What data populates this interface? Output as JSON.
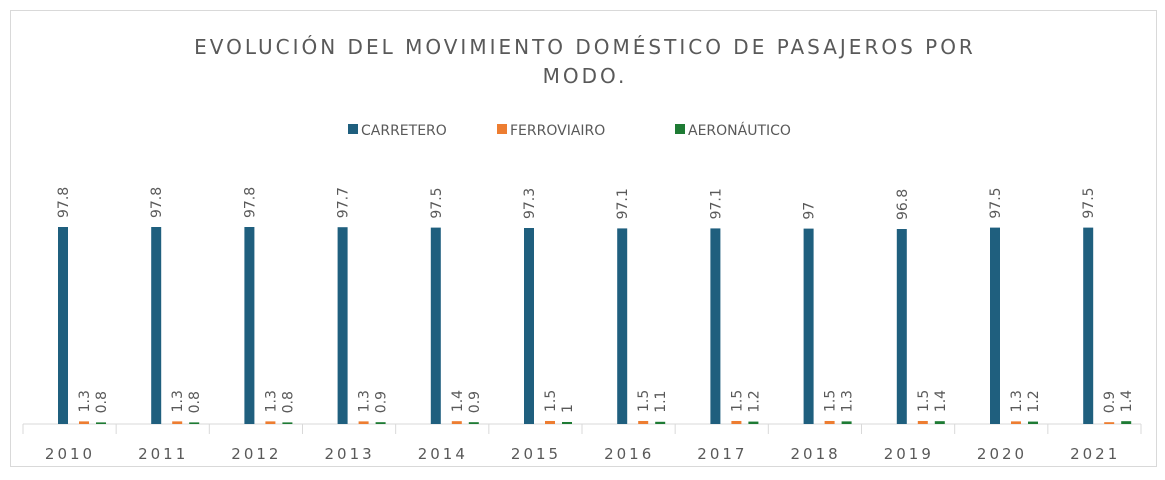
{
  "chart_data": {
    "type": "bar",
    "title": "EVOLUCIÓN DEL MOVIMIENTO DOMÉSTICO DE PASAJEROS POR MODO.",
    "categories": [
      "2010",
      "2011",
      "2012",
      "2013",
      "2014",
      "2015",
      "2016",
      "2017",
      "2018",
      "2019",
      "2020",
      "2021"
    ],
    "series": [
      {
        "name": "CARRETERO",
        "color": "#1f5f7e",
        "values": [
          97.8,
          97.8,
          97.8,
          97.7,
          97.5,
          97.3,
          97.1,
          97.1,
          97,
          96.8,
          97.5,
          97.5
        ]
      },
      {
        "name": "FERROVIAIRO",
        "color": "#ed7d31",
        "values": [
          1.3,
          1.3,
          1.3,
          1.3,
          1.4,
          1.5,
          1.5,
          1.5,
          1.5,
          1.5,
          1.3,
          0.9
        ]
      },
      {
        "name": "AERONÁUTICO",
        "color": "#1e7b34",
        "values": [
          0.8,
          0.8,
          0.8,
          0.9,
          0.9,
          1,
          1.1,
          1.2,
          1.3,
          1.4,
          1.2,
          1.4
        ]
      }
    ]
  }
}
